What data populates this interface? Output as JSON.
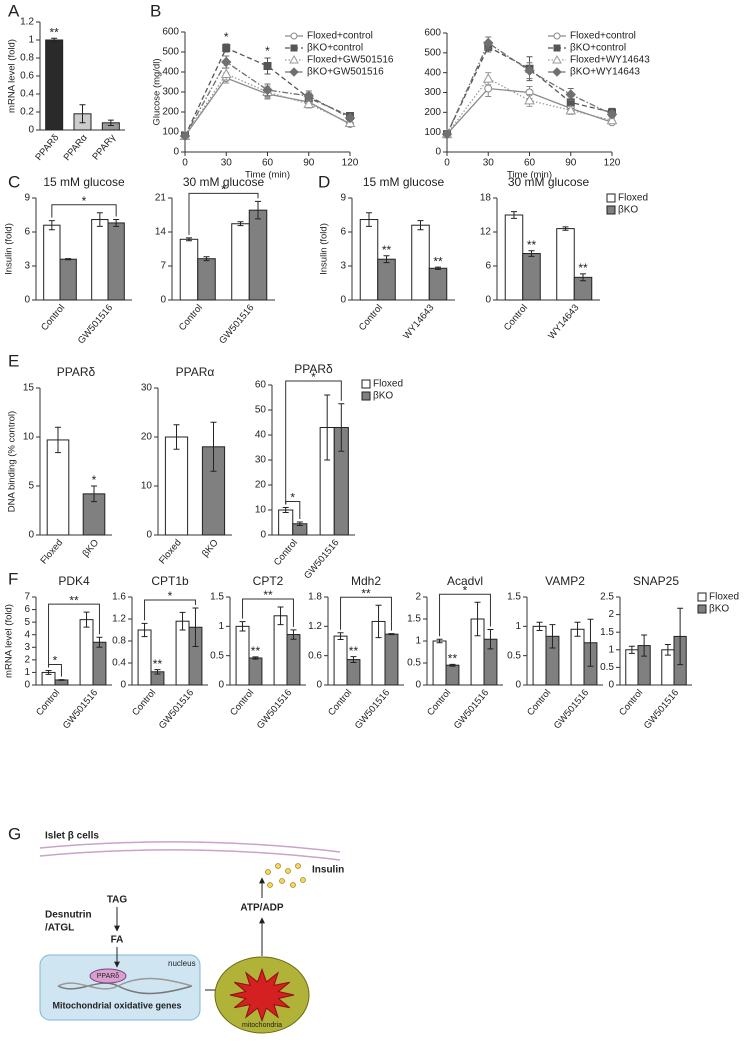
{
  "panel_labels": [
    "A",
    "B",
    "C",
    "D",
    "E",
    "F",
    "G"
  ],
  "chart_data": [
    {
      "type": "bar",
      "ylabel": "mRNA level (fold)",
      "categories": [
        "PPARδ",
        "PPARα",
        "PPARγ"
      ],
      "values": [
        1.0,
        0.18,
        0.08
      ],
      "errors": [
        0.02,
        0.1,
        0.03
      ],
      "colors": [
        "#2a2a2a",
        "#cccccc",
        "#999999"
      ],
      "ylim": [
        0,
        1.2
      ],
      "yticks": [
        0,
        0.2,
        0.4,
        0.6,
        0.8,
        1,
        1.2
      ],
      "annotations": [
        "**"
      ]
    },
    {
      "type": "line",
      "ylabel": "Glucose (mg/dl)",
      "xlabel": "Time (min)",
      "x": [
        0,
        30,
        60,
        90,
        120
      ],
      "xlim": [
        0,
        120
      ],
      "xticks": [
        0,
        30,
        60,
        90,
        120
      ],
      "ylim": [
        0,
        600
      ],
      "yticks": [
        0,
        100,
        200,
        300,
        400,
        500,
        600
      ],
      "series": [
        {
          "name": "Floxed+control",
          "color": "#8a8a8a",
          "marker": "circle",
          "filled": false,
          "linestyle": "solid",
          "values": [
            80,
            370,
            290,
            250,
            140
          ],
          "errors": [
            10,
            25,
            25,
            20,
            10
          ]
        },
        {
          "name": "βKO+control",
          "color": "#555555",
          "marker": "square",
          "filled": true,
          "linestyle": "dashed",
          "values": [
            80,
            520,
            430,
            270,
            180
          ],
          "errors": [
            10,
            20,
            40,
            25,
            10
          ]
        },
        {
          "name": "Floxed+GW501516",
          "color": "#9a9a9a",
          "marker": "triangle",
          "filled": false,
          "linestyle": "dotted",
          "values": [
            80,
            390,
            300,
            240,
            145
          ],
          "errors": [
            10,
            30,
            30,
            20,
            10
          ]
        },
        {
          "name": "βKO+GW501516",
          "color": "#707070",
          "marker": "diamond",
          "filled": true,
          "linestyle": "dashdot",
          "values": [
            80,
            450,
            310,
            280,
            170
          ],
          "errors": [
            10,
            30,
            30,
            25,
            10
          ]
        }
      ],
      "annotations": [
        "*",
        "*"
      ]
    },
    {
      "type": "line",
      "xlabel": "Time (min)",
      "x": [
        0,
        30,
        60,
        90,
        120
      ],
      "xlim": [
        0,
        120
      ],
      "xticks": [
        0,
        30,
        60,
        90,
        120
      ],
      "ylim": [
        0,
        600
      ],
      "yticks": [
        0,
        100,
        200,
        300,
        400,
        500,
        600
      ],
      "series": [
        {
          "name": "Floxed+control",
          "color": "#8a8a8a",
          "marker": "circle",
          "filled": false,
          "linestyle": "solid",
          "values": [
            90,
            320,
            300,
            220,
            150
          ],
          "errors": [
            10,
            40,
            30,
            25,
            10
          ]
        },
        {
          "name": "βKO+control",
          "color": "#555555",
          "marker": "square",
          "filled": true,
          "linestyle": "dashed",
          "values": [
            90,
            530,
            420,
            250,
            200
          ],
          "errors": [
            10,
            25,
            60,
            30,
            20
          ]
        },
        {
          "name": "Floxed+WY14643",
          "color": "#9a9a9a",
          "marker": "triangle",
          "filled": false,
          "linestyle": "dotted",
          "values": [
            90,
            370,
            260,
            210,
            160
          ],
          "errors": [
            10,
            30,
            30,
            20,
            10
          ]
        },
        {
          "name": "βKO+WY14643",
          "color": "#707070",
          "marker": "diamond",
          "filled": true,
          "linestyle": "dashdot",
          "values": [
            90,
            550,
            410,
            290,
            190
          ],
          "errors": [
            10,
            30,
            40,
            30,
            15
          ]
        }
      ]
    },
    {
      "type": "bar",
      "title": "15 mM glucose",
      "ylabel": "Insulin (fold)",
      "categories": [
        "Control",
        "GW501516"
      ],
      "series": [
        {
          "color": "#ffffff",
          "values": [
            6.6,
            7.1
          ],
          "errors": [
            0.4,
            0.6
          ]
        },
        {
          "color": "#808080",
          "values": [
            3.6,
            6.8
          ],
          "errors": [
            0.05,
            0.3
          ]
        }
      ],
      "ylim": [
        0,
        9
      ],
      "yticks": [
        0,
        3,
        6,
        9
      ],
      "annotations": [
        "*"
      ]
    },
    {
      "type": "bar",
      "title": "30 mM glucose",
      "categories": [
        "Control",
        "GW501516"
      ],
      "series": [
        {
          "color": "#ffffff",
          "values": [
            12.5,
            15.7
          ],
          "errors": [
            0.3,
            0.4
          ]
        },
        {
          "color": "#808080",
          "values": [
            8.5,
            18.5
          ],
          "errors": [
            0.4,
            1.8
          ]
        }
      ],
      "ylim": [
        0,
        21
      ],
      "yticks": [
        0,
        7,
        14,
        21
      ],
      "annotations": [
        "*"
      ]
    },
    {
      "type": "bar",
      "title": "15 mM glucose",
      "ylabel": "Insulin (fold)",
      "categories": [
        "Control",
        "WY14643"
      ],
      "series": [
        {
          "color": "#ffffff",
          "values": [
            7.1,
            6.6
          ],
          "errors": [
            0.6,
            0.4
          ]
        },
        {
          "color": "#808080",
          "values": [
            3.6,
            2.8
          ],
          "errors": [
            0.3,
            0.1
          ]
        }
      ],
      "ylim": [
        0,
        9
      ],
      "yticks": [
        0,
        3,
        6,
        9
      ],
      "annotations": [
        "**",
        "**"
      ]
    },
    {
      "type": "bar",
      "title": "30 mM glucose",
      "categories": [
        "Control",
        "WY14643"
      ],
      "series": [
        {
          "name": "Floxed",
          "color": "#ffffff",
          "values": [
            15,
            12.6
          ],
          "errors": [
            0.6,
            0.3
          ]
        },
        {
          "name": "βKO",
          "color": "#808080",
          "values": [
            8.2,
            4
          ],
          "errors": [
            0.5,
            0.6
          ]
        }
      ],
      "ylim": [
        0,
        18
      ],
      "yticks": [
        0,
        6,
        12,
        18
      ],
      "annotations": [
        "**",
        "**"
      ]
    },
    {
      "type": "bar",
      "title": "PPARδ",
      "ylabel": "DNA binding (% control)",
      "categories": [
        "Floxed",
        "βKO"
      ],
      "values": [
        9.7,
        4.2
      ],
      "errors": [
        1.3,
        0.8
      ],
      "colors": [
        "#ffffff",
        "#808080"
      ],
      "ylim": [
        0,
        15
      ],
      "yticks": [
        0,
        5,
        10,
        15
      ],
      "annotations": [
        "*"
      ]
    },
    {
      "type": "bar",
      "title": "PPARα",
      "categories": [
        "Floxed",
        "βKO"
      ],
      "values": [
        20,
        18
      ],
      "errors": [
        2.5,
        5
      ],
      "colors": [
        "#ffffff",
        "#808080"
      ],
      "ylim": [
        0,
        30
      ],
      "yticks": [
        0,
        10,
        20,
        30
      ]
    },
    {
      "type": "bar",
      "title": "PPARδ",
      "categories": [
        "Control",
        "GW501516"
      ],
      "series": [
        {
          "name": "Floxed",
          "color": "#ffffff",
          "values": [
            10,
            43
          ],
          "errors": [
            1,
            13
          ]
        },
        {
          "name": "βKO",
          "color": "#808080",
          "values": [
            4.5,
            43
          ],
          "errors": [
            0.7,
            9.5
          ]
        }
      ],
      "ylim": [
        0,
        60
      ],
      "yticks": [
        0,
        10,
        20,
        30,
        40,
        50,
        60
      ],
      "annotations": [
        "*",
        "*"
      ]
    },
    {
      "type": "bar",
      "title": "PDK4",
      "ylabel": "mRNA level (fold)",
      "categories": [
        "Control",
        "GW501516"
      ],
      "series": [
        {
          "color": "#ffffff",
          "values": [
            1.0,
            5.2
          ],
          "errors": [
            0.15,
            0.6
          ]
        },
        {
          "color": "#808080",
          "values": [
            0.4,
            3.4
          ],
          "errors": [
            0.03,
            0.4
          ]
        }
      ],
      "ylim": [
        0,
        7
      ],
      "yticks": [
        0,
        1,
        2,
        3,
        4,
        5,
        6,
        7
      ],
      "annotations": [
        "*",
        "**"
      ]
    },
    {
      "type": "bar",
      "title": "CPT1b",
      "categories": [
        "Control",
        "GW501516"
      ],
      "series": [
        {
          "color": "#ffffff",
          "values": [
            1.0,
            1.16
          ],
          "errors": [
            0.12,
            0.16
          ]
        },
        {
          "color": "#808080",
          "values": [
            0.24,
            1.05
          ],
          "errors": [
            0.04,
            0.35
          ]
        }
      ],
      "ylim": [
        0,
        1.6
      ],
      "yticks": [
        0,
        0.4,
        0.8,
        1.2,
        1.6
      ],
      "annotations": [
        "**",
        "*"
      ]
    },
    {
      "type": "bar",
      "title": "CPT2",
      "categories": [
        "Control",
        "GW501516"
      ],
      "series": [
        {
          "color": "#ffffff",
          "values": [
            1.0,
            1.18
          ],
          "errors": [
            0.08,
            0.15
          ]
        },
        {
          "color": "#808080",
          "values": [
            0.46,
            0.86
          ],
          "errors": [
            0.02,
            0.08
          ]
        }
      ],
      "ylim": [
        0,
        1.5
      ],
      "yticks": [
        0,
        0.5,
        1,
        1.5
      ],
      "annotations": [
        "**",
        "**"
      ]
    },
    {
      "type": "bar",
      "title": "Mdh2",
      "categories": [
        "Control",
        "GW501516"
      ],
      "series": [
        {
          "color": "#ffffff",
          "values": [
            1.0,
            1.3
          ],
          "errors": [
            0.07,
            0.33
          ]
        },
        {
          "color": "#808080",
          "values": [
            0.52,
            1.04
          ],
          "errors": [
            0.06,
            0.01
          ]
        }
      ],
      "ylim": [
        0,
        1.8
      ],
      "yticks": [
        0,
        0.6,
        1.2,
        1.8
      ],
      "annotations": [
        "**",
        "**"
      ]
    },
    {
      "type": "bar",
      "title": "Acadvl",
      "categories": [
        "Control",
        "GW501516"
      ],
      "series": [
        {
          "color": "#ffffff",
          "values": [
            1.0,
            1.5
          ],
          "errors": [
            0.04,
            0.38
          ]
        },
        {
          "color": "#808080",
          "values": [
            0.45,
            1.04
          ],
          "errors": [
            0.02,
            0.22
          ]
        }
      ],
      "ylim": [
        0,
        2
      ],
      "yticks": [
        0,
        0.5,
        1,
        1.5,
        2
      ],
      "annotations": [
        "**",
        "*"
      ]
    },
    {
      "type": "bar",
      "title": "VAMP2",
      "categories": [
        "Control",
        "GW501516"
      ],
      "series": [
        {
          "color": "#ffffff",
          "values": [
            1.0,
            0.95
          ],
          "errors": [
            0.07,
            0.12
          ]
        },
        {
          "color": "#808080",
          "values": [
            0.83,
            0.72
          ],
          "errors": [
            0.2,
            0.4
          ]
        }
      ],
      "ylim": [
        0,
        1.5
      ],
      "yticks": [
        0,
        0.5,
        1,
        1.5
      ]
    },
    {
      "type": "bar",
      "title": "SNAP25",
      "categories": [
        "Control",
        "GW501516"
      ],
      "series": [
        {
          "name": "Floxed",
          "color": "#ffffff",
          "values": [
            1.0,
            1.0
          ],
          "errors": [
            0.1,
            0.15
          ]
        },
        {
          "name": "βKO",
          "color": "#808080",
          "values": [
            1.12,
            1.38
          ],
          "errors": [
            0.3,
            0.8
          ]
        }
      ],
      "ylim": [
        0,
        2.5
      ],
      "yticks": [
        0,
        0.5,
        1,
        1.5,
        2,
        2.5
      ]
    }
  ],
  "diagram": {
    "membrane_label": "Islet β cells",
    "insulin": "Insulin",
    "tag": "TAG",
    "enzyme": [
      "Desnutrin",
      "/ATGL"
    ],
    "fa": "FA",
    "receptor": "PPARδ",
    "nucleus": "nucleus",
    "genes": "Mitochondrial oxidative genes",
    "atp": "ATP/ADP",
    "organelle": "mitochondria"
  }
}
